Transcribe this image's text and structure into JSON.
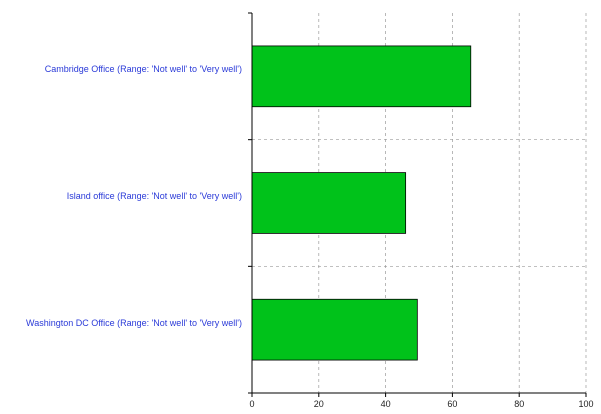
{
  "chart_data": {
    "type": "bar",
    "orientation": "horizontal",
    "categories": [
      "Cambridge Office (Range: 'Not well' to 'Very well')",
      "Island office (Range: 'Not well' to 'Very well')",
      "Washington DC Office (Range: 'Not well' to 'Very well')"
    ],
    "values": [
      65.5,
      46,
      49.5
    ],
    "xlim": [
      0,
      100
    ],
    "xticks": [
      0,
      20,
      40,
      60,
      80,
      100
    ],
    "grid": true,
    "bar_color": "#00c21a",
    "label_color": "#2a3ad8"
  }
}
